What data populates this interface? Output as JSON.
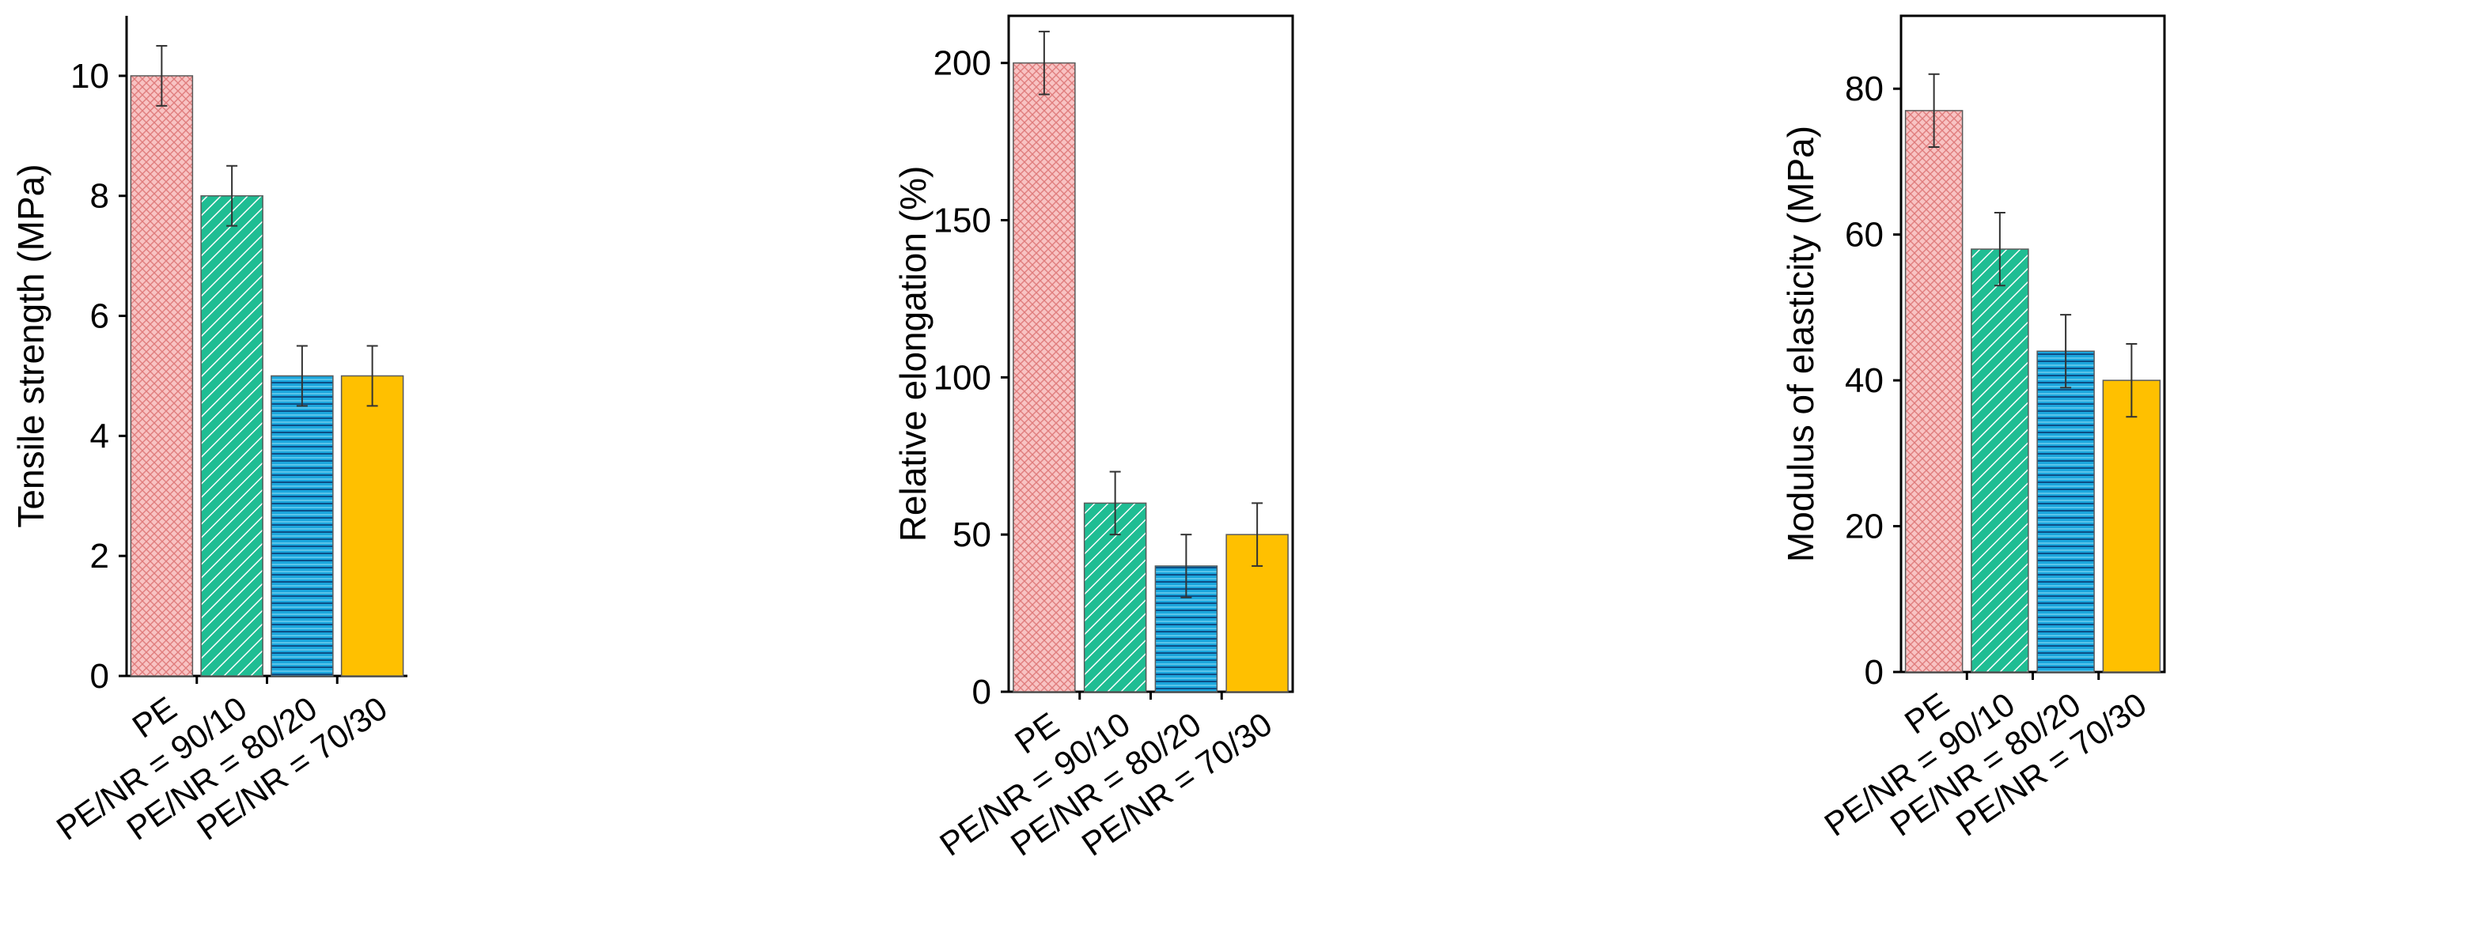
{
  "chart_data": [
    {
      "type": "bar",
      "title": "",
      "xlabel": "",
      "ylabel": "Tensile strength (MPa)",
      "categories": [
        "PE",
        "PE/NR = 90/10",
        "PE/NR = 80/20",
        "PE/NR = 70/30"
      ],
      "values": [
        10,
        8,
        5,
        5
      ],
      "errors": [
        0.5,
        0.5,
        0.5,
        0.5
      ],
      "ylim": [
        0,
        11
      ],
      "yticks": [
        "0",
        "2",
        "4",
        "6",
        "8",
        "10"
      ],
      "frame": "left-bottom",
      "grid": false
    },
    {
      "type": "bar",
      "title": "",
      "xlabel": "",
      "ylabel": "Relative elongation (%)",
      "categories": [
        "PE",
        "PE/NR = 90/10",
        "PE/NR = 80/20",
        "PE/NR = 70/30"
      ],
      "values": [
        200,
        60,
        40,
        50
      ],
      "errors": [
        10,
        10,
        10,
        10
      ],
      "ylim": [
        0,
        215
      ],
      "yticks": [
        "0",
        "50",
        "100",
        "150",
        "200"
      ],
      "frame": "box",
      "grid": false
    },
    {
      "type": "bar",
      "title": "",
      "xlabel": "",
      "ylabel": "Modulus of elasticity (MPa)",
      "categories": [
        "PE",
        "PE/NR = 90/10",
        "PE/NR = 80/20",
        "PE/NR = 70/30"
      ],
      "values": [
        77,
        58,
        44,
        40
      ],
      "errors": [
        5,
        5,
        5,
        5
      ],
      "ylim": [
        0,
        90
      ],
      "yticks": [
        "0",
        "20",
        "40",
        "60",
        "80"
      ],
      "frame": "box",
      "grid": false
    }
  ],
  "series_colors": [
    "#f6b7b7",
    "#1fbd93",
    "#1ba6dd",
    "#ffc000"
  ],
  "series_patterns": [
    "crosshatch",
    "diagonal",
    "horizontal",
    "solid"
  ]
}
